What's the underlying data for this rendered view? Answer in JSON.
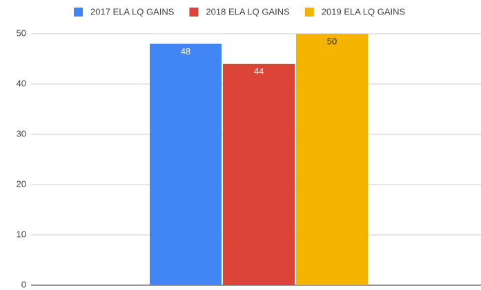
{
  "chart_data": {
    "type": "bar",
    "categories": [
      null
    ],
    "series": [
      {
        "name": "2017 ELA LQ GAINS",
        "color": "#4285f4",
        "values": [
          48
        ]
      },
      {
        "name": "2018 ELA LQ GAINS",
        "color": "#db4437",
        "values": [
          44
        ]
      },
      {
        "name": "2019 ELA LQ GAINS",
        "color": "#f4b400",
        "values": [
          50
        ]
      }
    ],
    "ylim": [
      0,
      50
    ],
    "yticks": [
      0,
      10,
      20,
      30,
      40,
      50
    ],
    "grid": true,
    "legend": "top"
  }
}
